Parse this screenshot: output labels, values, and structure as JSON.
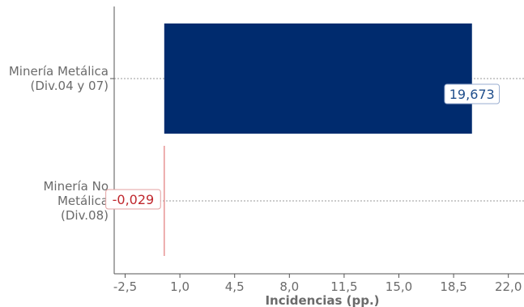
{
  "chart_data": {
    "type": "bar",
    "orientation": "horizontal",
    "categories": [
      [
        "Minería Metálica",
        "(Div.04 y 07)"
      ],
      [
        "Minería No",
        "Metálica",
        "(Div.08)"
      ]
    ],
    "values": [
      19.673,
      -0.029
    ],
    "value_labels": [
      "19,673",
      "-0,029"
    ],
    "bar_colors": [
      "#002b6e",
      "#e07a7a"
    ],
    "label_colors": [
      "#1f4e8c",
      "#c0272d"
    ],
    "label_border_colors": [
      "#9aaed0",
      "#e3a0a0"
    ],
    "xlabel": "Incidencias (pp.)",
    "xlim": [
      -3.2,
      23.0
    ],
    "xticks": [
      -2.5,
      1.0,
      4.5,
      8.0,
      11.5,
      15.0,
      18.5,
      22.0
    ],
    "xtick_labels": [
      "-2,5",
      "1,0",
      "4,5",
      "8,0",
      "11,5",
      "15,0",
      "18,5",
      "22,0"
    ],
    "grid": "horizontal dotted at category centers",
    "colors": {
      "axis": "#555555",
      "tick_text": "#6b6b6b",
      "gridline": "#9a9a9a"
    }
  }
}
